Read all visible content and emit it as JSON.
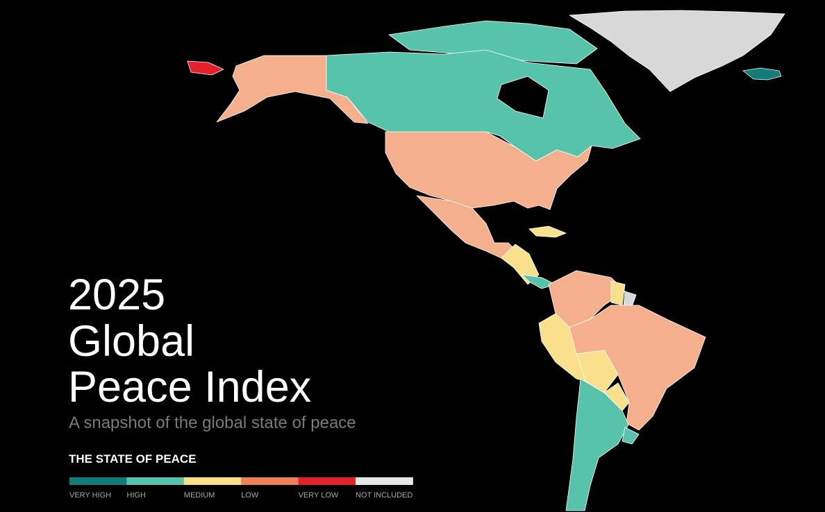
{
  "title_lines": [
    "2025",
    "Global",
    "Peace Index"
  ],
  "subtitle": "A snapshot of the global state of peace",
  "legend": {
    "heading": "THE STATE OF PEACE",
    "items": [
      {
        "label": "VERY HIGH",
        "color": "#137b78"
      },
      {
        "label": "HIGH",
        "color": "#57c3aa"
      },
      {
        "label": "MEDIUM",
        "color": "#f9e08c"
      },
      {
        "label": "LOW",
        "color": "#f08058"
      },
      {
        "label": "VERY LOW",
        "color": "#e4202a"
      },
      {
        "label": "NOT INCLUDED",
        "color": "#e6e6e6"
      }
    ]
  }
}
